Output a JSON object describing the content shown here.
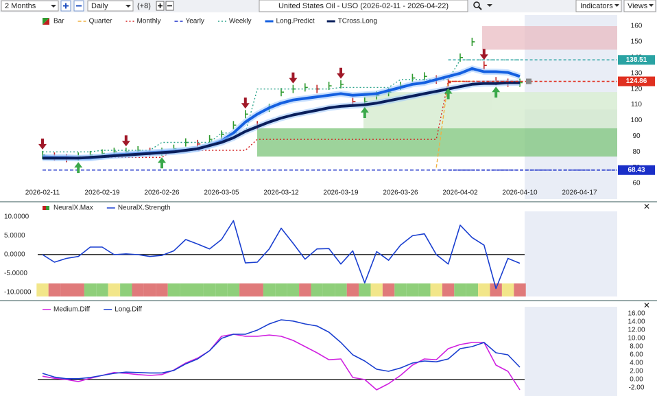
{
  "toolbar": {
    "period": "2 Months",
    "interval": "Daily",
    "offset": "(+8)",
    "title": "United States Oil - USO (2026-02-11 - 2026-04-22)",
    "indicators": "Indicators",
    "views": "Views"
  },
  "chart_data": [
    {
      "type": "line",
      "categories": [
        "2026-02-11",
        null,
        null,
        null,
        null,
        "2026-02-19",
        null,
        null,
        null,
        null,
        "2026-02-26",
        null,
        null,
        null,
        null,
        "2026-03-05",
        null,
        null,
        null,
        null,
        "2026-03-12",
        null,
        null,
        null,
        null,
        "2026-03-19",
        null,
        null,
        null,
        null,
        "2026-03-26",
        null,
        null,
        null,
        null,
        "2026-04-02",
        null,
        null,
        null,
        null,
        "2026-04-10",
        null,
        null,
        null,
        null,
        "2026-04-17",
        null,
        null,
        null
      ],
      "ylim": [
        50,
        167
      ],
      "yticks": [
        60,
        70,
        80,
        90,
        100,
        110,
        120,
        130,
        140,
        150,
        160
      ],
      "series": [
        {
          "name": "Bar",
          "color": "#2e9a2e",
          "style": "bar",
          "values": [
            78,
            77,
            76,
            77,
            78,
            79,
            80,
            80,
            81,
            80,
            80,
            82,
            86,
            85,
            88,
            91,
            97,
            104,
            97,
            108,
            118,
            120,
            121,
            120,
            122,
            123,
            112,
            112,
            116,
            118,
            122,
            127,
            128,
            126,
            124,
            140,
            150,
            135,
            125,
            124,
            124,
            null,
            null,
            null,
            null,
            null,
            null,
            null,
            null
          ]
        },
        {
          "name": "Quarter",
          "color": "#f0b040",
          "style": "dashed",
          "values": [
            null,
            null,
            null,
            null,
            null,
            null,
            null,
            null,
            null,
            null,
            null,
            null,
            null,
            null,
            null,
            null,
            null,
            null,
            null,
            null,
            null,
            null,
            null,
            null,
            null,
            null,
            null,
            null,
            null,
            null,
            null,
            null,
            null,
            70,
            124.86,
            124.86,
            124.86,
            124.86,
            124.86,
            124.86,
            124.86,
            null,
            null,
            null,
            null,
            null,
            null,
            null,
            null
          ]
        },
        {
          "name": "Monthly",
          "color": "#d42020",
          "style": "dotted",
          "values": [
            76.5,
            76.5,
            76.5,
            76.5,
            76.5,
            76.5,
            76.5,
            76.5,
            76.5,
            76.5,
            76.5,
            81,
            81,
            81,
            81,
            81,
            81,
            81,
            88,
            88,
            88,
            88,
            88,
            88,
            88,
            88,
            88,
            88,
            88,
            88,
            88,
            88,
            88,
            88,
            124.86,
            124.86,
            124.86,
            124.86,
            124.86,
            124.86,
            124.86,
            null,
            null,
            null,
            null,
            null,
            null,
            null,
            null
          ]
        },
        {
          "name": "Yearly",
          "color": "#1a2fc8",
          "style": "dashed",
          "values": [
            68.43,
            68.43,
            68.43,
            68.43,
            68.43,
            68.43,
            68.43,
            68.43,
            68.43,
            68.43,
            68.43,
            68.43,
            68.43,
            68.43,
            68.43,
            68.43,
            68.43,
            68.43,
            68.43,
            68.43,
            68.43,
            68.43,
            68.43,
            68.43,
            68.43,
            68.43,
            68.43,
            68.43,
            68.43,
            68.43,
            68.43,
            68.43,
            68.43,
            68.43,
            68.43,
            68.43,
            68.43,
            68.43,
            68.43,
            68.43,
            68.43,
            68.43,
            68.43,
            68.43,
            68.43,
            68.43,
            68.43,
            68.43,
            68.43
          ]
        },
        {
          "name": "Weekly",
          "color": "#2aa38a",
          "style": "dotted",
          "values": [
            80,
            80,
            80,
            80,
            80,
            81,
            81,
            81,
            81,
            81,
            86,
            86,
            86,
            86,
            86,
            92,
            92,
            92,
            120,
            120,
            120,
            120,
            120,
            120,
            120,
            121,
            121,
            121,
            121,
            121,
            126,
            126,
            126,
            126,
            126,
            138.51,
            138.51,
            138.51,
            138.51,
            138.51,
            138.51,
            null,
            null,
            null,
            null,
            null,
            null,
            null,
            null
          ]
        },
        {
          "name": "Long.Predict",
          "color": "#1560e0",
          "style": "thick",
          "values": [
            77,
            76.5,
            76.5,
            76,
            76,
            77,
            78,
            78.5,
            79,
            79.5,
            80,
            80.5,
            81,
            82,
            84,
            87,
            92,
            99,
            104,
            108,
            111,
            113,
            114,
            115,
            116,
            117,
            116,
            116.5,
            117,
            119,
            121,
            123,
            124,
            126,
            128,
            130,
            133,
            131,
            131,
            130.5,
            128,
            null,
            null,
            null,
            null,
            null,
            null,
            null,
            null
          ]
        },
        {
          "name": "TCross.Long",
          "color": "#0a1f5c",
          "style": "thick",
          "values": [
            76,
            76,
            76,
            76,
            76.5,
            77,
            77.5,
            78,
            78.5,
            79,
            79.5,
            80,
            81,
            82,
            84,
            86,
            89,
            93,
            96,
            99,
            101.5,
            103.5,
            105,
            106.5,
            108,
            109,
            109.5,
            110,
            111,
            112.5,
            114,
            115.5,
            117,
            118.5,
            120,
            121.5,
            123,
            123.5,
            123.5,
            124,
            124,
            null,
            null,
            null,
            null,
            null,
            null,
            null,
            null
          ]
        }
      ],
      "sell_signals": [
        0,
        7,
        17,
        21,
        25,
        37
      ],
      "buy_signals": [
        3,
        10,
        27,
        34,
        38
      ],
      "level_labels": [
        138.51,
        124.86,
        68.43
      ],
      "level_colors": [
        "#2aa3a3",
        "#e03020",
        "#1a2fc8"
      ]
    },
    {
      "type": "line",
      "ylim": [
        -11.1,
        11.45
      ],
      "yticks": [
        {
          "value": 10,
          "label": "10.0000"
        },
        {
          "value": 5,
          "label": "5.0000"
        },
        {
          "value": 0,
          "label": "0.0000"
        },
        {
          "value": -5,
          "label": "-5.0000"
        },
        {
          "value": -10,
          "label": "-10.0000"
        }
      ],
      "series": [
        {
          "name": "NeuralX.Max",
          "color": "#3a9a3a",
          "style": "strip",
          "strip_colors": [
            "#f2e68a",
            "#e07a7a",
            "#e07a7a",
            "#e07a7a",
            "#8fcf7a",
            "#8fcf7a",
            "#f2e68a",
            "#8fcf7a",
            "#e07a7a",
            "#e07a7a",
            "#e07a7a",
            "#8fcf7a",
            "#8fcf7a",
            "#8fcf7a",
            "#8fcf7a",
            "#8fcf7a",
            "#8fcf7a",
            "#e07a7a",
            "#e07a7a",
            "#8fcf7a",
            "#8fcf7a",
            "#8fcf7a",
            "#e07a7a",
            "#8fcf7a",
            "#8fcf7a",
            "#8fcf7a",
            "#e07a7a",
            "#8fcf7a",
            "#f2e68a",
            "#e07a7a",
            "#8fcf7a",
            "#8fcf7a",
            "#8fcf7a",
            "#f2e68a",
            "#e07a7a",
            "#8fcf7a",
            "#8fcf7a",
            "#f2e68a",
            "#e07a7a",
            "#f2e68a",
            "#e07a7a"
          ]
        },
        {
          "name": "NeuralX.Strength",
          "color": "#1a3fd0",
          "style": "solid",
          "values": [
            0,
            -2,
            -1,
            -0.5,
            2,
            2,
            0,
            0.2,
            0,
            -0.5,
            -0.2,
            1,
            4,
            2.8,
            1.5,
            4,
            9,
            -2.2,
            -2,
            1.5,
            7,
            3,
            -1.2,
            1.5,
            1.6,
            -2.5,
            1,
            -7.5,
            0.8,
            -1.5,
            2.5,
            5,
            5.5,
            0,
            -2.5,
            7.8,
            4.5,
            2.5,
            -9,
            -1,
            -2.3
          ]
        }
      ]
    },
    {
      "type": "line",
      "ylim": [
        -4,
        17.67
      ],
      "yticks": [
        {
          "value": 16,
          "label": "16.00"
        },
        {
          "value": 14,
          "label": "14.00"
        },
        {
          "value": 12,
          "label": "12.00"
        },
        {
          "value": 10,
          "label": "10.00"
        },
        {
          "value": 8,
          "label": "8.00"
        },
        {
          "value": 6,
          "label": "6.00"
        },
        {
          "value": 4,
          "label": "4.00"
        },
        {
          "value": 2,
          "label": "2.00"
        },
        {
          "value": 0,
          "label": "0.00"
        },
        {
          "value": -2,
          "label": "-2.00"
        }
      ],
      "series": [
        {
          "name": "Medium.Diff",
          "color": "#d020e0",
          "style": "solid",
          "values": [
            0.8,
            0.3,
            0,
            -0.5,
            0.3,
            1,
            1.7,
            1.5,
            1.2,
            1,
            1.2,
            2.3,
            4,
            5.2,
            7,
            10.5,
            11,
            10.5,
            10.5,
            10.8,
            10.5,
            9.5,
            8,
            6.5,
            4.8,
            5,
            0.5,
            0,
            -2.5,
            -1,
            1,
            3.5,
            5,
            4.8,
            7.5,
            8.5,
            9,
            9,
            3.5,
            2,
            -2.5
          ]
        },
        {
          "name": "Long.Diff",
          "color": "#1a3fd0",
          "style": "solid",
          "values": [
            1.5,
            0.6,
            0.2,
            0.2,
            0.5,
            1,
            1.5,
            1.8,
            1.7,
            1.6,
            1.6,
            2.2,
            3.8,
            5,
            7,
            10,
            11,
            11,
            12,
            13.5,
            14.5,
            14.2,
            13.5,
            13,
            11.5,
            9,
            6,
            4.5,
            2.5,
            2,
            2.8,
            4,
            4.5,
            4.3,
            5,
            7.5,
            8,
            9,
            6.5,
            6,
            3
          ]
        }
      ]
    }
  ]
}
